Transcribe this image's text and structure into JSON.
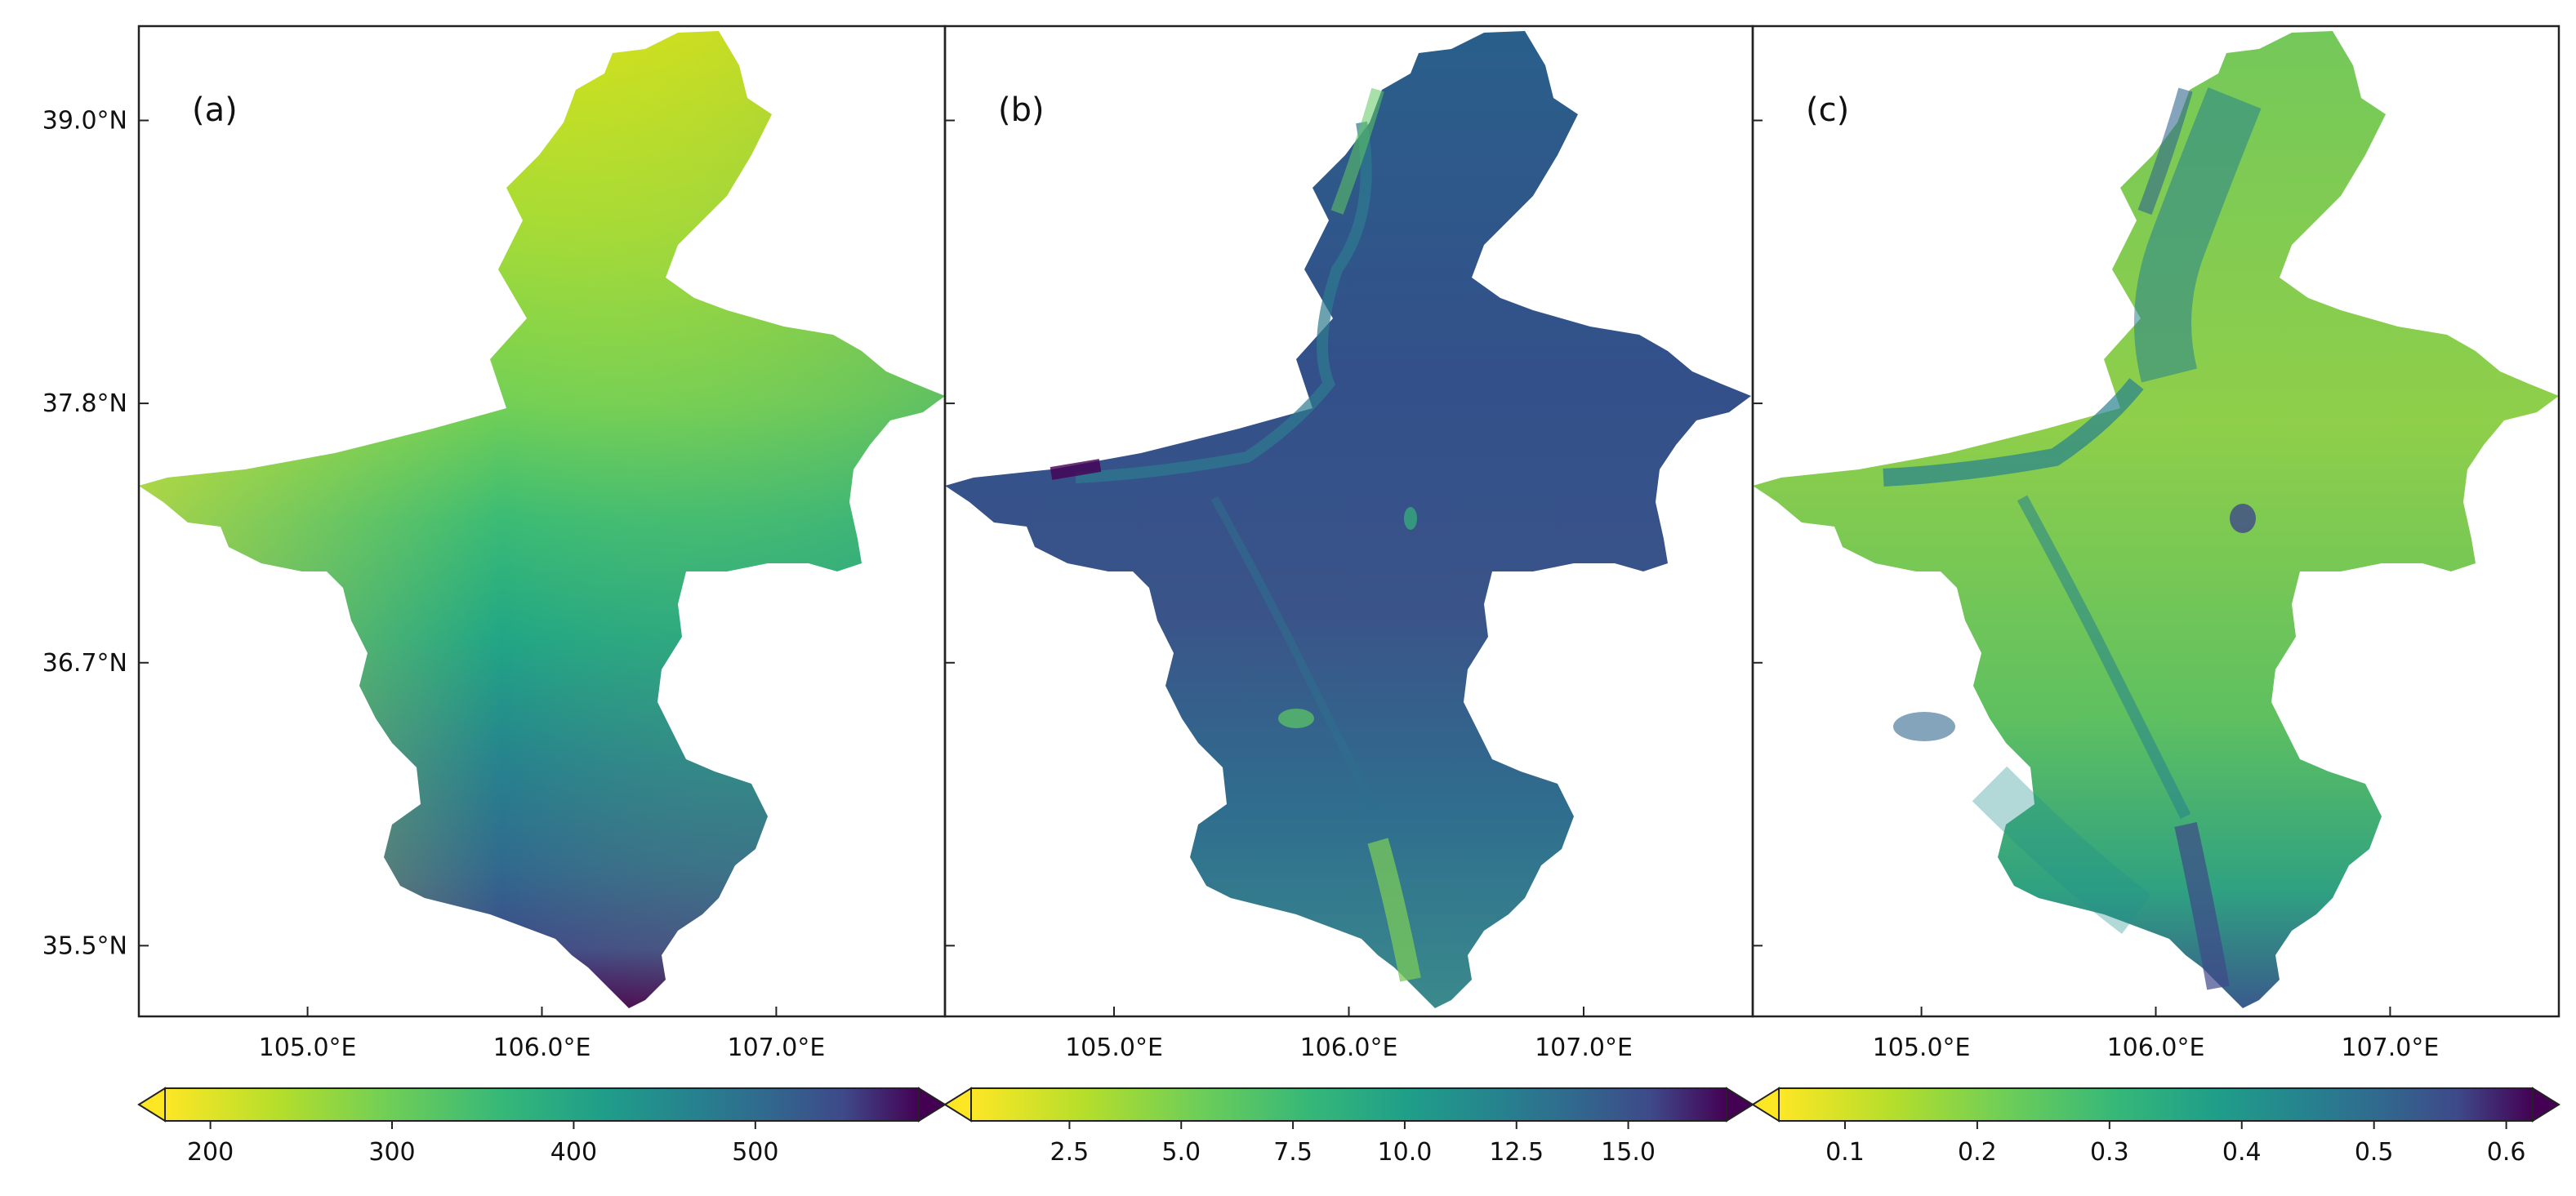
{
  "figure": {
    "panels": [
      {
        "label": "(a)",
        "colormap": "viridis_r",
        "colorbar": {
          "ticks": [
            "200",
            "300",
            "400",
            "500"
          ],
          "min": 175,
          "max": 590,
          "tick_values": [
            200,
            300,
            400,
            500
          ],
          "extend": "both"
        }
      },
      {
        "label": "(b)",
        "colormap": "viridis_r",
        "colorbar": {
          "ticks": [
            "2.5",
            "5.0",
            "7.5",
            "10.0",
            "12.5",
            "15.0"
          ],
          "min": 0.3,
          "max": 17.2,
          "tick_values": [
            2.5,
            5.0,
            7.5,
            10.0,
            12.5,
            15.0
          ],
          "extend": "both"
        }
      },
      {
        "label": "(c)",
        "colormap": "viridis_r",
        "colorbar": {
          "ticks": [
            "0.1",
            "0.2",
            "0.3",
            "0.4",
            "0.5",
            "0.6"
          ],
          "min": 0.05,
          "max": 0.62,
          "tick_values": [
            0.1,
            0.2,
            0.3,
            0.4,
            0.5,
            0.6
          ],
          "extend": "both"
        }
      }
    ],
    "lon_ticks": [
      "105.0°E",
      "106.0°E",
      "107.0°E"
    ],
    "lat_ticks": [
      "39.0°N",
      "37.8°N",
      "36.7°N",
      "35.5°N"
    ],
    "lon_range": [
      104.28,
      107.72
    ],
    "lat_range": [
      35.2,
      39.4
    ],
    "colors": {
      "viridis_yellow": "#fde725",
      "viridis_green": "#5ec962",
      "viridis_teal": "#21918c",
      "viridis_blue": "#3b528b",
      "viridis_purple": "#440154"
    }
  }
}
